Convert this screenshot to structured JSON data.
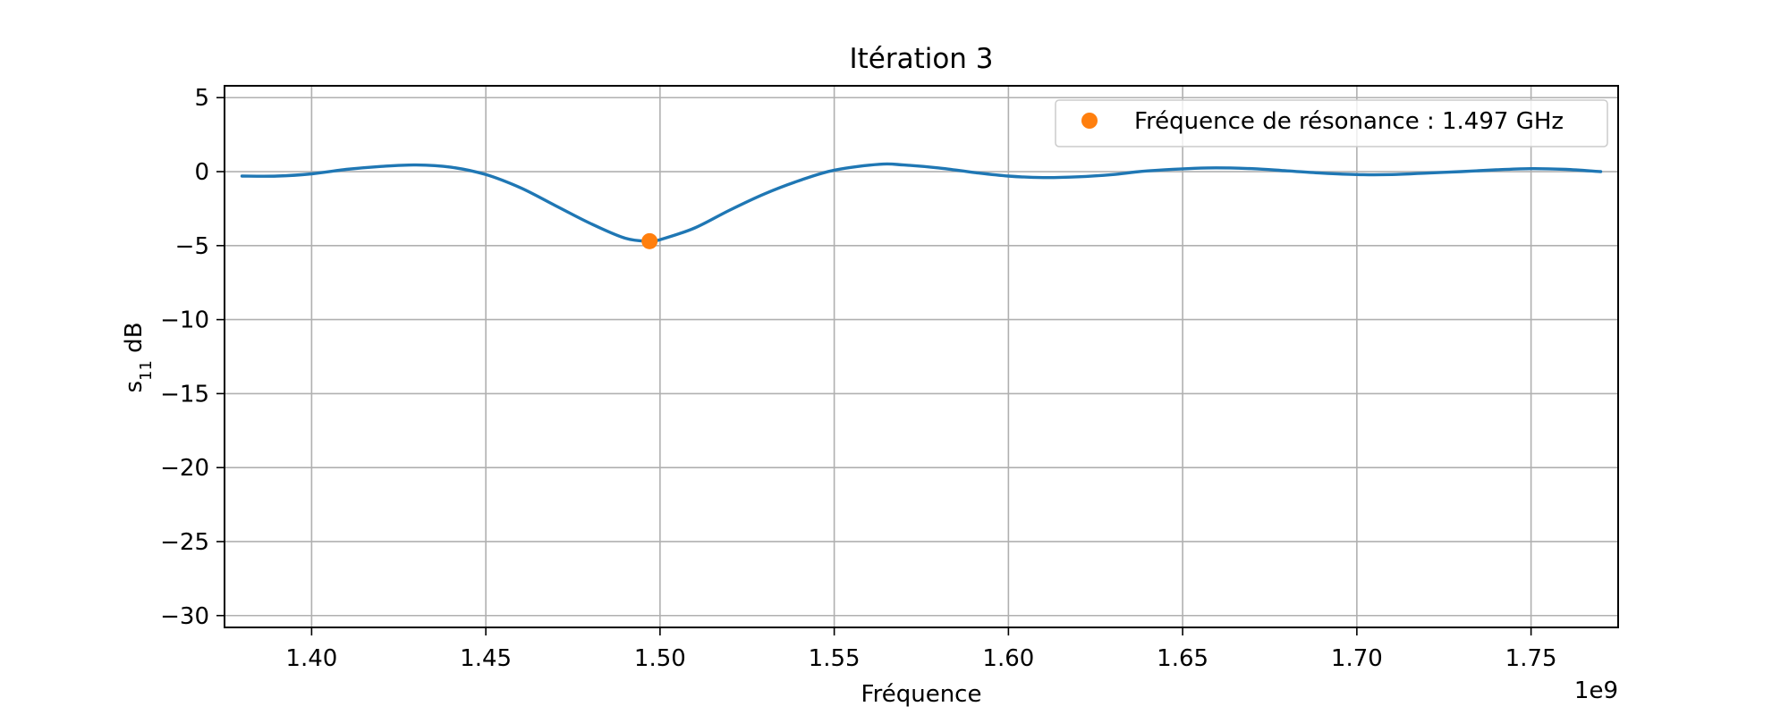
{
  "chart_data": {
    "type": "line",
    "title": "Itération 3",
    "xlabel": "Fréquence",
    "ylabel_main": "s",
    "ylabel_sub": "11",
    "ylabel_unit": " dB",
    "x_offset_label": "1e9",
    "xlim": [
      1.375,
      1.775
    ],
    "ylim": [
      -30.8,
      5.8
    ],
    "x_ticks": [
      1.4,
      1.45,
      1.5,
      1.55,
      1.6,
      1.65,
      1.7,
      1.75
    ],
    "x_tick_labels": [
      "1.40",
      "1.45",
      "1.50",
      "1.55",
      "1.60",
      "1.65",
      "1.70",
      "1.75"
    ],
    "y_ticks": [
      5,
      0,
      -5,
      -10,
      -15,
      -20,
      -25,
      -30
    ],
    "y_tick_labels": [
      "5",
      "0",
      "−5",
      "−10",
      "−15",
      "−20",
      "−25",
      "−30"
    ],
    "grid": true,
    "legend_position": "upper right",
    "series": [
      {
        "color": "#1f77b4",
        "x": [
          1.38,
          1.39,
          1.4,
          1.41,
          1.42,
          1.43,
          1.44,
          1.45,
          1.46,
          1.47,
          1.48,
          1.49,
          1.497,
          1.5,
          1.51,
          1.52,
          1.53,
          1.54,
          1.55,
          1.563,
          1.57,
          1.58,
          1.59,
          1.6,
          1.61,
          1.62,
          1.63,
          1.64,
          1.657,
          1.67,
          1.68,
          1.69,
          1.7,
          1.71,
          1.72,
          1.73,
          1.74,
          1.75,
          1.76,
          1.77
        ],
        "y": [
          -0.3,
          -0.3,
          -0.15,
          0.15,
          0.35,
          0.45,
          0.3,
          -0.2,
          -1.1,
          -2.3,
          -3.5,
          -4.5,
          -4.7,
          -4.6,
          -3.8,
          -2.6,
          -1.5,
          -0.6,
          0.1,
          0.5,
          0.45,
          0.25,
          -0.05,
          -0.3,
          -0.4,
          -0.35,
          -0.2,
          0.05,
          0.25,
          0.2,
          0.05,
          -0.1,
          -0.2,
          -0.2,
          -0.1,
          0.0,
          0.12,
          0.2,
          0.15,
          0.0
        ]
      },
      {
        "name": "Fréquence de résonance : 1.497 GHz",
        "color": "#ff7f0e",
        "marker": "o",
        "x": [
          1.497
        ],
        "y": [
          -4.7
        ]
      }
    ]
  }
}
